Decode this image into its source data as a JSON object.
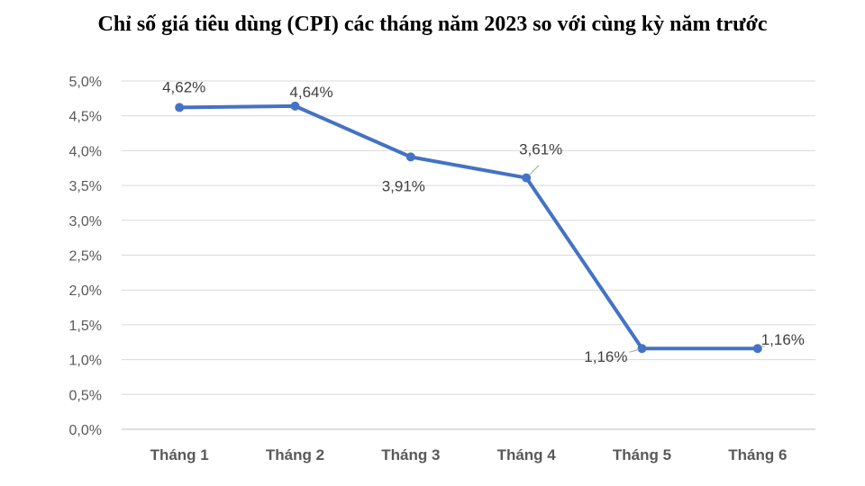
{
  "chart_data": {
    "type": "line",
    "title": "Chỉ số giá tiêu dùng (CPI) các tháng năm 2023 so với cùng kỳ năm trước",
    "categories": [
      "Tháng 1",
      "Tháng 2",
      "Tháng 3",
      "Tháng 4",
      "Tháng 5",
      "Tháng 6"
    ],
    "series": [
      {
        "values": [
          4.62,
          4.64,
          3.91,
          3.61,
          1.16,
          1.16
        ],
        "data_labels": [
          "4,62%",
          "4,64%",
          "3,91%",
          "3,61%",
          "1,16%",
          "1,16%"
        ],
        "color": "#4472C4"
      }
    ],
    "ylim": [
      0,
      5
    ],
    "y_ticks": [
      0,
      0.5,
      1,
      1.5,
      2,
      2.5,
      3,
      3.5,
      4,
      4.5,
      5
    ],
    "y_tick_labels": [
      "0,0%",
      "0,5%",
      "1,0%",
      "1,5%",
      "2,0%",
      "2,5%",
      "3,0%",
      "3,5%",
      "4,0%",
      "4,5%",
      "5,0%"
    ],
    "grid": true,
    "gridline_color": "#D9D9D9",
    "xlabel": "",
    "ylabel": ""
  }
}
